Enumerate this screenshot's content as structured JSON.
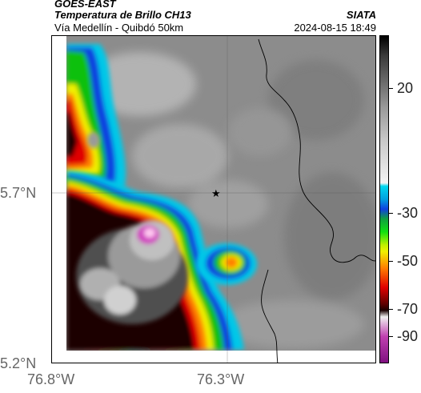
{
  "header": {
    "satellite": "GOES-EAST",
    "product": "Temperatura de Brillo CH13",
    "region": "Vía Medellín - Quibdó 50km",
    "agency": "SIATA",
    "timestamp": "2024-08-15 18:49"
  },
  "axes": {
    "y_ticks": [
      "5.7°N",
      "5.2°N"
    ],
    "x_ticks": [
      "76.8°W",
      "76.3°W"
    ]
  },
  "colorbar": {
    "labels": [
      "20",
      "-30",
      "-50",
      "-70",
      "-90"
    ],
    "colors": {
      "warm_gray": "#888888",
      "cold_cyan": "#00c8e8",
      "blue": "#1040e0",
      "green": "#10c010",
      "yellow": "#f0f000",
      "orange": "#ff8000",
      "red": "#e00000",
      "dark": "#1a0000",
      "magenta": "#d040c0"
    }
  },
  "map": {
    "marker_icon": "star-marker"
  }
}
